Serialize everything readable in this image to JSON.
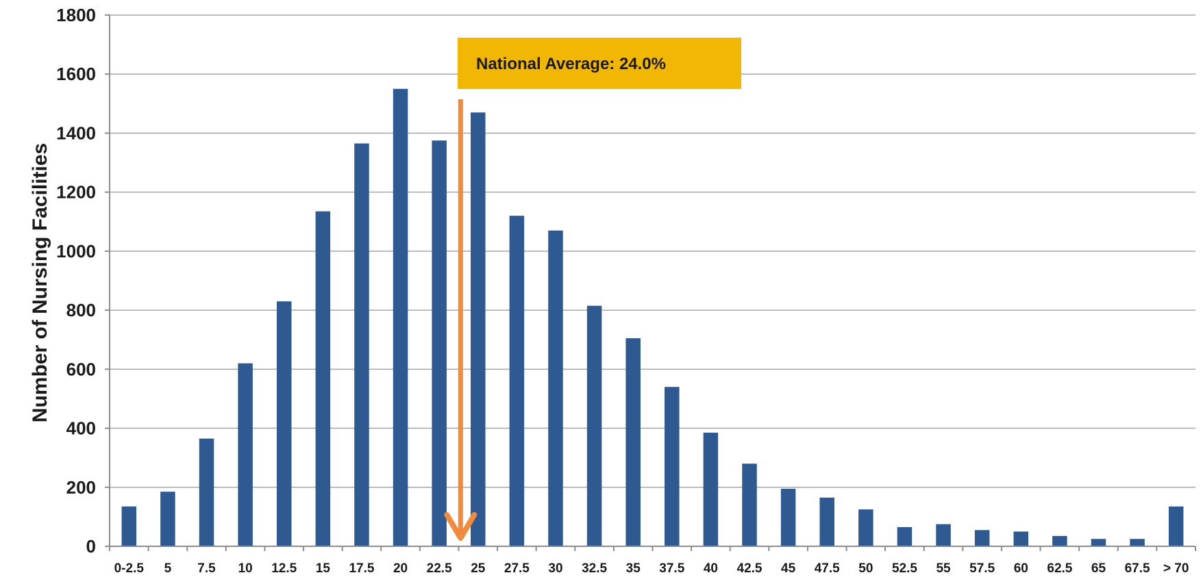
{
  "chart_data": {
    "type": "bar",
    "title": "",
    "xlabel": "",
    "ylabel": "Number of Nursing Facilities",
    "ylim": [
      0,
      1800
    ],
    "yticks": [
      0,
      200,
      400,
      600,
      800,
      1000,
      1200,
      1400,
      1600,
      1800
    ],
    "grid": true,
    "categories": [
      "0-2.5",
      "5",
      "7.5",
      "10",
      "12.5",
      "15",
      "17.5",
      "20",
      "22.5",
      "25",
      "27.5",
      "30",
      "32.5",
      "35",
      "37.5",
      "40",
      "42.5",
      "45",
      "47.5",
      "50",
      "52.5",
      "55",
      "57.5",
      "60",
      "62.5",
      "65",
      "67.5",
      "> 70"
    ],
    "values": [
      135,
      185,
      365,
      620,
      830,
      1135,
      1365,
      1550,
      1375,
      1470,
      1120,
      1070,
      815,
      705,
      540,
      385,
      280,
      195,
      165,
      125,
      65,
      75,
      55,
      50,
      35,
      25,
      25,
      135
    ],
    "annotation": {
      "text": "National Average: 24.0%",
      "x": 24.0
    },
    "colors": {
      "bar": "#2E5A91",
      "arrow": "#F08A3C",
      "annotation_box": "#F2B705",
      "grid": "#A6A6A6"
    }
  }
}
